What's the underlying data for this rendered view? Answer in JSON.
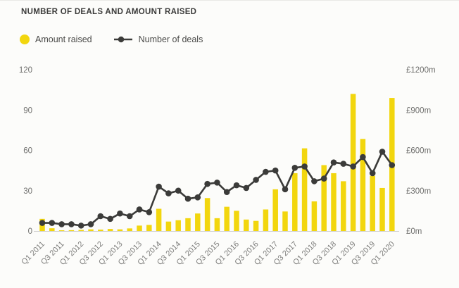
{
  "header": {
    "title": "NUMBER OF DEALS AND AMOUNT RAISED"
  },
  "legend": {
    "amount_raised_label": "Amount raised",
    "number_of_deals_label": "Number of deals"
  },
  "colors": {
    "bar": "#f2d60e",
    "line": "#3b3b39",
    "axis_text": "#6f6f6d",
    "x_label_text": "#7d7d7b",
    "baseline": "#cccccb",
    "background": "#fcfcfa",
    "title_text": "#3c3c3b"
  },
  "chart_data": {
    "type": "combo",
    "title": "NUMBER OF DEALS AND AMOUNT RAISED",
    "grid": false,
    "legend_position": "top-left",
    "categories": [
      "Q1 2011",
      "Q2 2011",
      "Q3 2011",
      "Q4 2011",
      "Q1 2012",
      "Q2 2012",
      "Q3 2012",
      "Q4 2012",
      "Q1 2013",
      "Q2 2013",
      "Q3 2013",
      "Q4 2013",
      "Q1 2014",
      "Q2 2014",
      "Q3 2014",
      "Q4 2014",
      "Q1 2015",
      "Q2 2015",
      "Q3 2015",
      "Q4 2015",
      "Q1 2016",
      "Q2 2016",
      "Q3 2016",
      "Q4 2016",
      "Q1 2017",
      "Q2 2017",
      "Q3 2017",
      "Q4 2017",
      "Q1 2018",
      "Q2 2018",
      "Q3 2018",
      "Q4 2018",
      "Q1 2019",
      "Q2 2019",
      "Q3 2019",
      "Q4 2019",
      "Q1 2020"
    ],
    "x_tick_labels": [
      "Q1 2011",
      "Q3 2011",
      "Q1 2012",
      "Q3 2012",
      "Q1 2013",
      "Q3 2013",
      "Q1 2014",
      "Q3 2014",
      "Q1 2015",
      "Q3 2015",
      "Q1 2016",
      "Q3 2016",
      "Q1 2017",
      "Q3 2017",
      "Q1 2018",
      "Q3 2018",
      "Q1 2019",
      "Q3 2019",
      "Q1 2020"
    ],
    "series": [
      {
        "name": "Amount raised",
        "type": "bar",
        "axis": "right",
        "unit": "£m",
        "color": "#f2d60e",
        "values": [
          90,
          20,
          5,
          6,
          8,
          12,
          10,
          15,
          12,
          19,
          40,
          45,
          165,
          70,
          80,
          95,
          130,
          245,
          95,
          180,
          150,
          85,
          75,
          160,
          310,
          145,
          430,
          615,
          220,
          490,
          430,
          370,
          1020,
          685,
          410,
          320,
          990
        ]
      },
      {
        "name": "Number of deals",
        "type": "line",
        "axis": "left",
        "unit": "deals",
        "color": "#3b3b39",
        "values": [
          6,
          6,
          5,
          5,
          4,
          5,
          11,
          9,
          13,
          11,
          16,
          14,
          33,
          28,
          30,
          24,
          25,
          35,
          36,
          29,
          34,
          32,
          38,
          44,
          45,
          31,
          47,
          48,
          37,
          39,
          51,
          50,
          48,
          55,
          43,
          59,
          49
        ]
      }
    ],
    "left_axis": {
      "range": [
        0,
        120
      ],
      "tick_values": [
        0,
        30,
        60,
        90,
        120
      ],
      "tick_labels": [
        "0",
        "30",
        "60",
        "90",
        "120"
      ]
    },
    "right_axis": {
      "range": [
        0,
        1200
      ],
      "tick_values": [
        0,
        300,
        600,
        900,
        1200
      ],
      "tick_labels": [
        "£0m",
        "£300m",
        "£600m",
        "£900m",
        "£1200m"
      ]
    }
  }
}
